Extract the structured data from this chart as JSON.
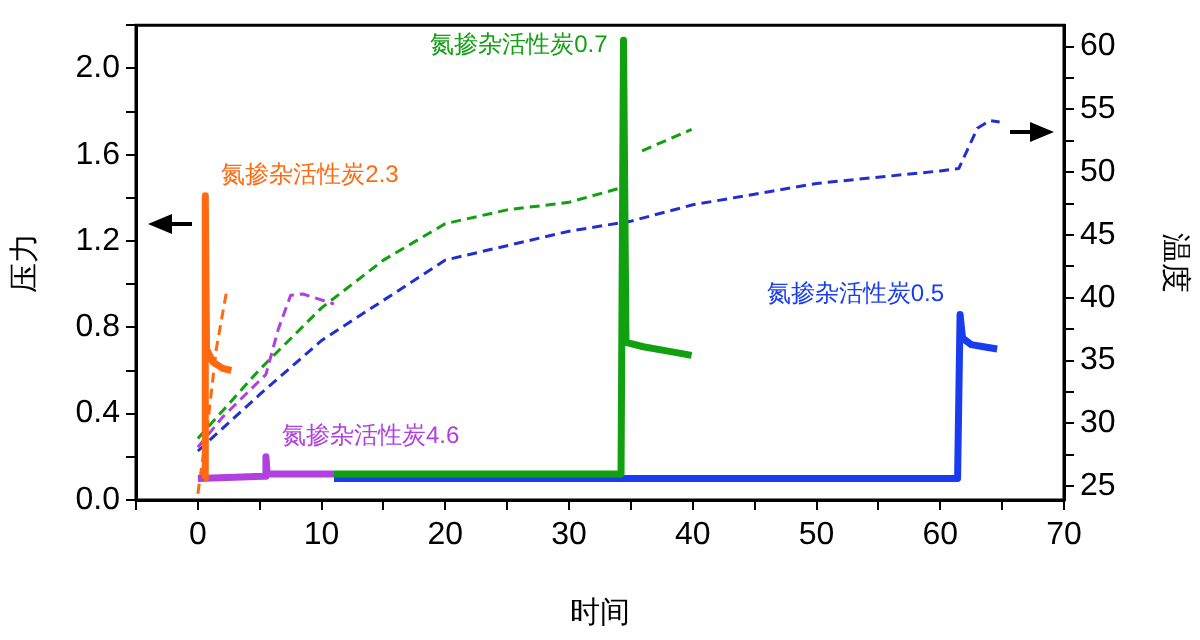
{
  "chart_data": {
    "type": "line",
    "xlabel": "时间",
    "ylabel": "压力",
    "y2label": "温度",
    "xlim": [
      -5,
      70
    ],
    "xticks": [
      {
        "value": -5,
        "label": null
      },
      0,
      {
        "value": 5,
        "label": null
      },
      10,
      {
        "value": 15,
        "label": null
      },
      20,
      {
        "value": 25,
        "label": null
      },
      30,
      {
        "value": 35,
        "label": null
      },
      40,
      {
        "value": 45,
        "label": null
      },
      50,
      {
        "value": 55,
        "label": null
      },
      60,
      {
        "value": 65,
        "label": null
      },
      70
    ],
    "ylim": [
      0,
      2.2
    ],
    "yticks": [
      {
        "value": 0,
        "label": "0.0"
      },
      {
        "value": 0.2,
        "label": null
      },
      0.4,
      {
        "value": 0.6,
        "label": null
      },
      0.8,
      {
        "value": 1.0,
        "label": null
      },
      1.2,
      {
        "value": 1.4,
        "label": null
      },
      1.6,
      {
        "value": 1.8,
        "label": null
      },
      {
        "value": 2.0,
        "label": "2.0"
      },
      {
        "value": 2.2,
        "label": null
      }
    ],
    "y2lim": [
      23.9,
      61.7
    ],
    "y2ticks": [
      25,
      {
        "value": 27.5,
        "label": null
      },
      30,
      {
        "value": 32.5,
        "label": null
      },
      35,
      {
        "value": 37.5,
        "label": null
      },
      40,
      {
        "value": 42.5,
        "label": null
      },
      45,
      {
        "value": 47.5,
        "label": null
      },
      50,
      {
        "value": 52.5,
        "label": null
      },
      55,
      {
        "value": 57.5,
        "label": null
      },
      60
    ],
    "grid": false,
    "legend": false,
    "marker": "none",
    "series": [
      {
        "name": "氮掺杂活性炭2.3",
        "color": "#ff6a10",
        "line_style": "solid",
        "x": [
          0.5,
          0.6,
          0.7,
          1.2,
          2,
          2.7
        ],
        "values": [
          0.1,
          1.41,
          0.7,
          0.64,
          0.61,
          0.6
        ]
      },
      {
        "name": "氮掺杂活性炭4.6",
        "color": "#b040e0",
        "line_style": "solid",
        "x": [
          0,
          5.4,
          5.5,
          5.6,
          11
        ],
        "values": [
          0.1,
          0.11,
          0.2,
          0.12,
          0.12
        ]
      },
      {
        "name": "氮掺杂活性炭0.7",
        "color": "#10a010",
        "line_style": "solid",
        "x": [
          11,
          20,
          34.2,
          34.4,
          34.6,
          36,
          38,
          39.9
        ],
        "values": [
          0.12,
          0.12,
          0.12,
          2.13,
          0.73,
          0.71,
          0.69,
          0.67
        ]
      },
      {
        "name": "氮掺杂活性炭0.5",
        "color": "#1a3cf0",
        "line_style": "solid",
        "x": [
          11,
          20,
          40,
          61.4,
          61.6,
          61.8,
          62.5,
          63.5,
          64.6
        ],
        "values": [
          0.1,
          0.1,
          0.1,
          0.1,
          0.86,
          0.75,
          0.72,
          0.71,
          0.7
        ]
      },
      {
        "color": "#ff6a10",
        "axis": "y2",
        "line_style": "dashed",
        "x": [
          0,
          0.8,
          1.5,
          2.3
        ],
        "values": [
          24.4,
          30,
          36,
          40.4
        ]
      },
      {
        "color": "#b040e0",
        "axis": "y2",
        "line_style": "dashed",
        "x": [
          0,
          2,
          5.5,
          6.5,
          7.5,
          8.5,
          11
        ],
        "values": [
          28.1,
          30.5,
          33.9,
          37.5,
          40.2,
          40.3,
          39.5
        ]
      },
      {
        "color": "#10a010",
        "axis": "y2",
        "line_style": "dashed",
        "x": [
          0,
          5,
          10,
          15,
          20,
          25,
          30,
          34,
          null,
          35.9,
          39.9
        ],
        "values": [
          28.8,
          34.3,
          39.2,
          43,
          45.9,
          47,
          47.6,
          48.7,
          null,
          51.7,
          53.4
        ]
      },
      {
        "color": "#2030d0",
        "axis": "y2",
        "line_style": "dashed",
        "x": [
          0,
          5,
          10,
          20,
          30,
          35,
          40,
          50,
          60,
          61.5,
          63,
          64,
          64.8
        ],
        "values": [
          27.8,
          32.3,
          36.6,
          43,
          45.3,
          46.1,
          47.4,
          49.1,
          50.1,
          50.3,
          53.5,
          54.1,
          54
        ]
      }
    ]
  }
}
